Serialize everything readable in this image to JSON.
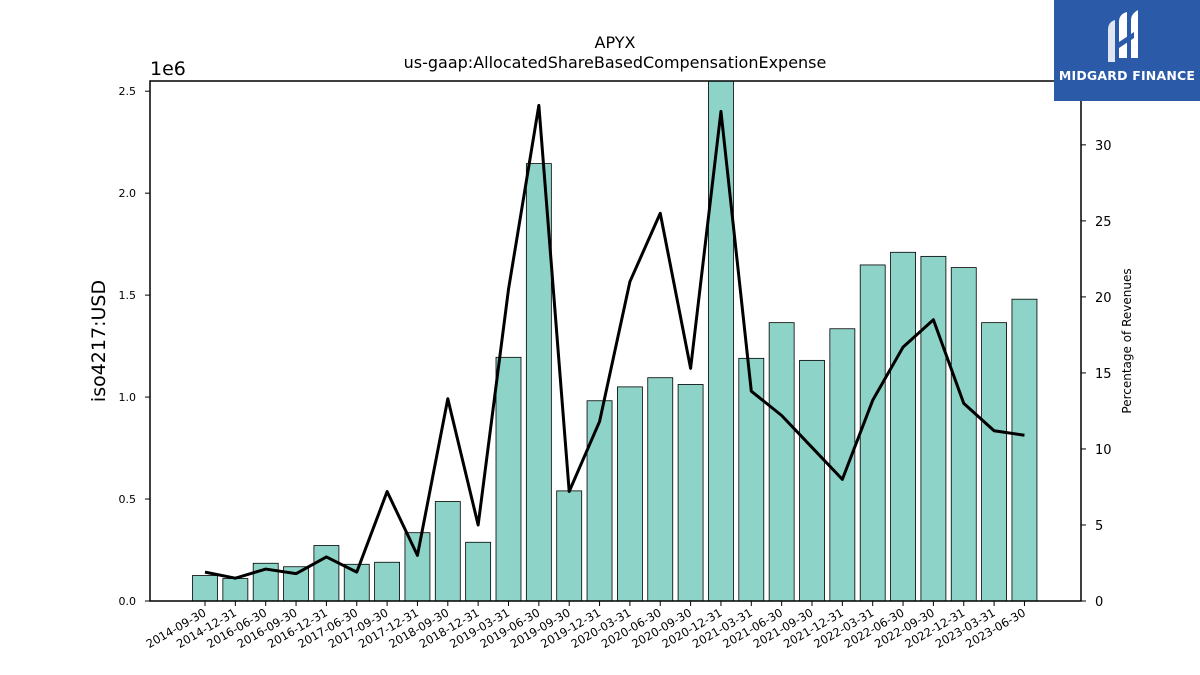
{
  "chart_data": {
    "type": "bar",
    "title": "APYX",
    "subtitle": "us-gaap:AllocatedShareBasedCompensationExpense",
    "ylabel": "iso4217:USD",
    "y2label": "Percentage of Revenues",
    "offset_text": "1e6",
    "ylim": [
      0,
      2550000
    ],
    "y2lim": [
      0,
      34.2
    ],
    "yticks": [
      0.0,
      0.5,
      1.0,
      1.5,
      2.0,
      2.5
    ],
    "y2ticks": [
      0,
      5,
      10,
      15,
      20,
      25,
      30
    ],
    "categories": [
      "2014-09-30",
      "2014-12-31",
      "2016-06-30",
      "2016-09-30",
      "2016-12-31",
      "2017-06-30",
      "2017-09-30",
      "2017-12-31",
      "2018-09-30",
      "2018-12-31",
      "2019-03-31",
      "2019-06-30",
      "2019-09-30",
      "2019-12-31",
      "2020-03-31",
      "2020-06-30",
      "2020-09-30",
      "2020-12-31",
      "2021-03-31",
      "2021-06-30",
      "2021-09-30",
      "2021-12-31",
      "2022-03-31",
      "2022-06-30",
      "2022-09-30",
      "2022-12-31",
      "2023-03-31",
      "2023-06-30"
    ],
    "series": [
      {
        "name": "",
        "kind": "bar",
        "axis": "left",
        "color": "#8ed3c7",
        "values": [
          125000,
          110000,
          185000,
          168000,
          272000,
          180000,
          190000,
          335000,
          488000,
          288000,
          1195000,
          2145000,
          540000,
          982000,
          1050000,
          1095000,
          1062000,
          2560000,
          1190000,
          1365000,
          1180000,
          1335000,
          1648000,
          1710000,
          1690000,
          1635000,
          1365000,
          1480000
        ]
      },
      {
        "name": "",
        "kind": "line",
        "axis": "right",
        "color": "#000000",
        "values": [
          1.9,
          1.5,
          2.1,
          1.8,
          2.9,
          1.9,
          7.2,
          3.0,
          13.3,
          5.0,
          20.5,
          32.6,
          7.2,
          11.8,
          21.0,
          25.5,
          15.3,
          32.2,
          13.8,
          12.2,
          10.1,
          8.0,
          13.2,
          16.7,
          18.5,
          13.0,
          11.2,
          10.9
        ]
      }
    ],
    "grid": false
  },
  "logo": {
    "text": "MIDGARD FINANCE",
    "color": "#2b5aa9"
  }
}
